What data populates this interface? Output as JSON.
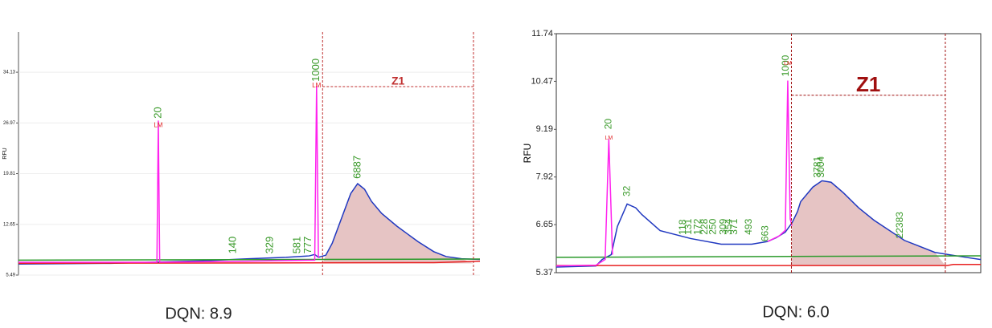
{
  "chart_data": [
    {
      "type": "line",
      "y_label": "RFU",
      "caption": "DQN: 8.9",
      "xlim": [
        0,
        100
      ],
      "ylim": [
        5.49,
        39.8
      ],
      "yticks": [
        5.49,
        12.65,
        19.81,
        26.97,
        34.13
      ],
      "grid": true,
      "frame": false,
      "series": [
        {
          "color": "#2038c0",
          "x": [
            0,
            20,
            40,
            50,
            58,
            63,
            64.2,
            65,
            66.6,
            68,
            70,
            72,
            73.5,
            75,
            76.5,
            78.7,
            82,
            86.6,
            90,
            92.7,
            96,
            100
          ],
          "values": [
            7.05,
            7.15,
            7.5,
            7.8,
            8.0,
            8.2,
            8.4,
            8.0,
            8.3,
            10.0,
            13.5,
            17.0,
            18.4,
            17.6,
            15.9,
            14.2,
            12.4,
            10.2,
            8.8,
            8.1,
            7.8,
            7.7
          ]
        },
        {
          "color": "#2a9a2a",
          "x": [
            0,
            100
          ],
          "values": [
            7.6,
            7.75
          ]
        },
        {
          "color": "#e82020",
          "x": [
            0,
            90,
            100
          ],
          "values": [
            7.15,
            7.25,
            7.45
          ]
        },
        {
          "color": "#ff22ee",
          "x": [
            0,
            30,
            30.3,
            30.6,
            45,
            64.2,
            64.6,
            65.0
          ],
          "values": [
            7.3,
            7.3,
            27.3,
            7.3,
            7.4,
            7.6,
            32.2,
            7.9
          ]
        }
      ],
      "zone": {
        "label": "Z1",
        "x0": 65.9,
        "x1": 98.6,
        "y": 32.1,
        "color": "#c03030",
        "fill_color": "#e6c4c4"
      },
      "peak_labels": [
        {
          "text": "20",
          "x": 30.3,
          "y": 27.6
        },
        {
          "text": "1000",
          "x": 64.6,
          "y": 32.8
        },
        {
          "text": "140",
          "x": 46.5,
          "y": 8.5
        },
        {
          "text": "329",
          "x": 54.5,
          "y": 8.5
        },
        {
          "text": "581",
          "x": 60.5,
          "y": 8.5
        },
        {
          "text": "777",
          "x": 62.8,
          "y": 8.5
        },
        {
          "text": "6887",
          "x": 73.5,
          "y": 19.1
        }
      ],
      "marker_labels": [
        {
          "text": "LM",
          "x": 30.3,
          "y": 26.6
        },
        {
          "text": "LM",
          "x": 64.6,
          "y": 32.2
        }
      ]
    },
    {
      "type": "line",
      "y_label": "RFU",
      "caption": "DQN: 6.0",
      "xlim": [
        1.8,
        8.75
      ],
      "ylim": [
        5.37,
        11.74
      ],
      "yticks": [
        5.37,
        6.65,
        7.92,
        9.19,
        10.47,
        11.74
      ],
      "grid": false,
      "frame": true,
      "series": [
        {
          "color": "#2038c0",
          "x": [
            1.8,
            2.45,
            2.55,
            2.7,
            2.8,
            2.96,
            3.1,
            3.2,
            3.5,
            4.0,
            4.5,
            5.0,
            5.26,
            5.4,
            5.55,
            5.66,
            5.75,
            5.8,
            6.0,
            6.15,
            6.3,
            6.5,
            6.75,
            7.0,
            7.5,
            8.0,
            8.5,
            8.75
          ],
          "values": [
            5.52,
            5.55,
            5.72,
            5.85,
            6.6,
            7.2,
            7.1,
            6.92,
            6.49,
            6.28,
            6.13,
            6.13,
            6.2,
            6.3,
            6.45,
            6.7,
            7.0,
            7.26,
            7.65,
            7.82,
            7.78,
            7.5,
            7.1,
            6.77,
            6.23,
            5.91,
            5.78,
            5.72
          ]
        },
        {
          "color": "#2a9a2a",
          "x": [
            1.8,
            8.75
          ],
          "values": [
            5.78,
            5.82
          ]
        },
        {
          "color": "#e82020",
          "x": [
            1.8,
            8.2,
            8.3,
            8.75
          ],
          "values": [
            5.56,
            5.56,
            5.59,
            5.59
          ]
        },
        {
          "color": "#ff22ee",
          "x": [
            1.8,
            2.45,
            2.6,
            2.66,
            2.72,
            null,
            5.26,
            5.45,
            5.55,
            5.59,
            5.63,
            5.66
          ],
          "values": [
            5.55,
            5.57,
            5.72,
            8.93,
            5.85,
            null,
            6.2,
            6.35,
            6.5,
            10.49,
            6.8,
            6.62
          ]
        }
      ],
      "zone": {
        "label": "Z1",
        "x0": 5.65,
        "x1": 8.17,
        "y": 10.1,
        "color": "#a01010",
        "fill_color": "#e6c4c4"
      },
      "peak_labels": [
        {
          "text": "20",
          "x": 2.66,
          "y": 9.19
        },
        {
          "text": "32",
          "x": 2.96,
          "y": 7.4
        },
        {
          "text": "118",
          "x": 3.88,
          "y": 6.38
        },
        {
          "text": "131",
          "x": 3.97,
          "y": 6.38
        },
        {
          "text": "172",
          "x": 4.12,
          "y": 6.38
        },
        {
          "text": "228",
          "x": 4.23,
          "y": 6.38
        },
        {
          "text": "250",
          "x": 4.37,
          "y": 6.38
        },
        {
          "text": "309",
          "x": 4.54,
          "y": 6.38
        },
        {
          "text": "354",
          "x": 4.63,
          "y": 6.38
        },
        {
          "text": "371",
          "x": 4.72,
          "y": 6.38
        },
        {
          "text": "493",
          "x": 4.96,
          "y": 6.38
        },
        {
          "text": "663",
          "x": 5.23,
          "y": 6.2
        },
        {
          "text": "1000",
          "x": 5.56,
          "y": 10.6
        },
        {
          "text": "3781",
          "x": 6.08,
          "y": 7.9
        },
        {
          "text": "3004",
          "x": 6.14,
          "y": 7.9
        },
        {
          "text": "22383",
          "x": 7.43,
          "y": 6.28
        }
      ],
      "marker_labels": [
        {
          "text": "LM",
          "x": 2.66,
          "y": 8.96
        },
        {
          "text": "LM",
          "x": 5.59,
          "y": 10.95
        }
      ]
    }
  ]
}
